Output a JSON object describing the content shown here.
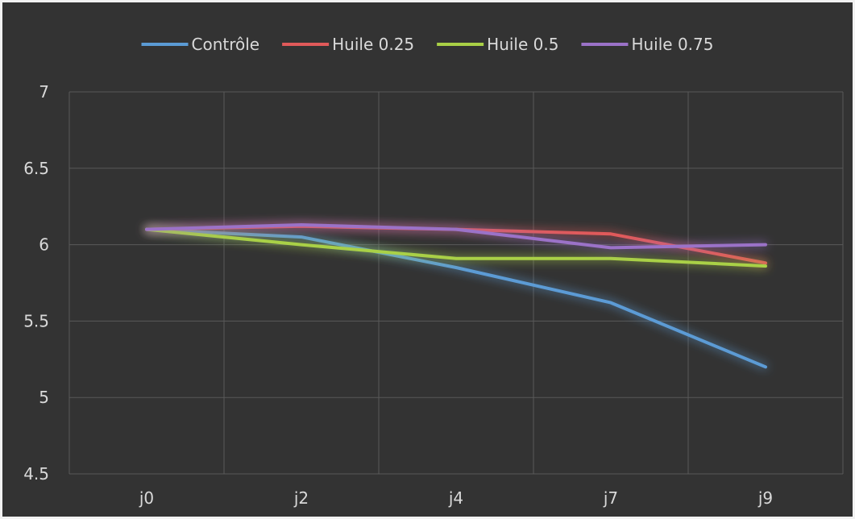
{
  "chart_data": {
    "type": "line",
    "title": "",
    "xlabel": "",
    "ylabel": "",
    "categories": [
      "j0",
      "j2",
      "j4",
      "j7",
      "j9"
    ],
    "ylim": [
      4.5,
      7
    ],
    "yticks": [
      "4.5",
      "5",
      "5.5",
      "6",
      "6.5",
      "7"
    ],
    "ytick_values": [
      4.5,
      5,
      5.5,
      6,
      6.5,
      7
    ],
    "grid": true,
    "legend_position": "top",
    "series": [
      {
        "name": "Contrôle",
        "color": "#5b9bd5",
        "values": [
          6.1,
          6.05,
          5.85,
          5.62,
          5.2
        ]
      },
      {
        "name": "Huile 0.25",
        "color": "#e05a5a",
        "values": [
          6.1,
          6.12,
          6.1,
          6.07,
          5.88
        ]
      },
      {
        "name": "Huile 0.5",
        "color": "#a9d046",
        "values": [
          6.1,
          6.0,
          5.91,
          5.91,
          5.86
        ]
      },
      {
        "name": "Huile 0.75",
        "color": "#9b72c8",
        "values": [
          6.1,
          6.13,
          6.1,
          5.98,
          6.0
        ]
      }
    ]
  }
}
